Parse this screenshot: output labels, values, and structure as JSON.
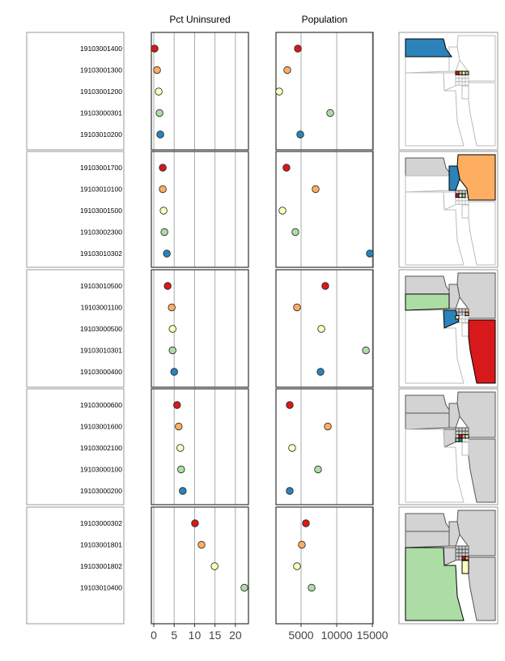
{
  "chart_data": {
    "type": "linked-micromap",
    "palette": [
      "#d7191c",
      "#fdae61",
      "#ffffbf",
      "#abdda4",
      "#2b83ba"
    ],
    "previous_fill": "#d3d3d3",
    "columns": [
      {
        "title": "Pct Uninsured",
        "ticks": [
          0,
          5,
          10,
          15,
          20
        ],
        "tick_labels": [
          "0",
          "5",
          "10",
          "15",
          "20"
        ],
        "xlim": [
          -0.6,
          23.2
        ],
        "grid": true
      },
      {
        "title": "Population",
        "ticks": [
          5000,
          10000,
          15000
        ],
        "tick_labels": [
          "5000",
          "10000",
          "15000"
        ],
        "xlim": [
          1480,
          15100
        ],
        "grid": true
      }
    ],
    "groups": [
      {
        "rows": [
          {
            "tract": "19103001400",
            "pct_uninsured": 0.2,
            "population": 4550
          },
          {
            "tract": "19103001300",
            "pct_uninsured": 0.8,
            "population": 3070
          },
          {
            "tract": "19103001200",
            "pct_uninsured": 1.2,
            "population": 1930
          },
          {
            "tract": "19103000301",
            "pct_uninsured": 1.4,
            "population": 9090
          },
          {
            "tract": "19103010200",
            "pct_uninsured": 1.6,
            "population": 4890
          }
        ]
      },
      {
        "rows": [
          {
            "tract": "19103001700",
            "pct_uninsured": 2.2,
            "population": 2950
          },
          {
            "tract": "19103010100",
            "pct_uninsured": 2.2,
            "population": 7040
          },
          {
            "tract": "19103001500",
            "pct_uninsured": 2.4,
            "population": 2390
          },
          {
            "tract": "19103002300",
            "pct_uninsured": 2.6,
            "population": 4200
          },
          {
            "tract": "19103010302",
            "pct_uninsured": 3.2,
            "population": 14650
          }
        ]
      },
      {
        "rows": [
          {
            "tract": "19103010500",
            "pct_uninsured": 3.4,
            "population": 8400
          },
          {
            "tract": "19103001100",
            "pct_uninsured": 4.4,
            "population": 4430
          },
          {
            "tract": "19103000500",
            "pct_uninsured": 4.6,
            "population": 7840
          },
          {
            "tract": "19103010301",
            "pct_uninsured": 4.6,
            "population": 14090
          },
          {
            "tract": "19103000400",
            "pct_uninsured": 5.0,
            "population": 7730
          }
        ]
      },
      {
        "rows": [
          {
            "tract": "19103000600",
            "pct_uninsured": 5.7,
            "population": 3410
          },
          {
            "tract": "19103001600",
            "pct_uninsured": 6.1,
            "population": 8750
          },
          {
            "tract": "19103002100",
            "pct_uninsured": 6.5,
            "population": 3750
          },
          {
            "tract": "19103000100",
            "pct_uninsured": 6.7,
            "population": 7380
          },
          {
            "tract": "19103000200",
            "pct_uninsured": 7.1,
            "population": 3410
          }
        ]
      },
      {
        "rows": [
          {
            "tract": "19103000302",
            "pct_uninsured": 10.1,
            "population": 5680
          },
          {
            "tract": "19103001801",
            "pct_uninsured": 11.7,
            "population": 5110
          },
          {
            "tract": "19103001802",
            "pct_uninsured": 14.9,
            "population": 4430
          },
          {
            "tract": "19103010400",
            "pct_uninsured": 22.2,
            "population": 6480
          }
        ]
      }
    ]
  }
}
